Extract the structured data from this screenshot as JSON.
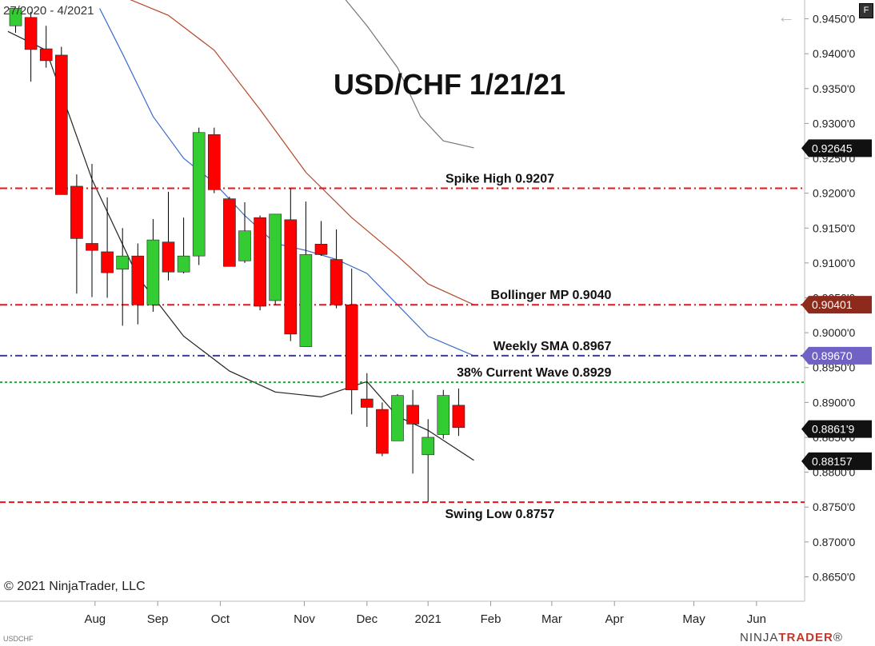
{
  "header": {
    "date_range": "27/2020 - 4/2021",
    "symbol": "USDCHF",
    "f_button": "F",
    "back_icon": "left-arrow-icon"
  },
  "footer": {
    "copyright": "© 2021 NinjaTrader, LLC",
    "logo_prefix": "NINJA",
    "logo_suffix": "TRADER",
    "logo_mark": "®"
  },
  "colors": {
    "bull": "#33cc33",
    "bear": "#ff0000",
    "wick": "#000000",
    "sma": "#222222",
    "bb_mid": "#b5482a",
    "bb_lower": "#3a6ccc",
    "bb_upper": "#777777",
    "red_line": "#e8141a",
    "blue_line": "#3b3b9e",
    "green_line": "#2e9e44",
    "tag_black": "#111111",
    "tag_brown": "#8e2a1b",
    "tag_purple": "#6f62c4"
  },
  "chart_data": {
    "type": "candlestick",
    "title": "USD/CHF 1/21/21",
    "ylim": [
      0.8615,
      0.9477
    ],
    "y_ticks": [
      "0.9450'0",
      "0.9400'0",
      "0.9350'0",
      "0.9300'0",
      "0.9250'0",
      "0.9200'0",
      "0.9150'0",
      "0.9100'0",
      "0.9050'0",
      "0.9000'0",
      "0.8950'0",
      "0.8900'0",
      "0.8850'0",
      "0.8800'0",
      "0.8750'0",
      "0.8700'0",
      "0.8650'0"
    ],
    "y_tick_values": [
      0.945,
      0.94,
      0.935,
      0.93,
      0.925,
      0.92,
      0.915,
      0.91,
      0.905,
      0.9,
      0.895,
      0.89,
      0.885,
      0.88,
      0.875,
      0.87,
      0.865
    ],
    "x_labels": [
      {
        "label": "Aug",
        "index": 5.2
      },
      {
        "label": "Sep",
        "index": 9.3
      },
      {
        "label": "Oct",
        "index": 13.4
      },
      {
        "label": "Nov",
        "index": 18.9
      },
      {
        "label": "Dec",
        "index": 23.0
      },
      {
        "label": "2021",
        "index": 27.0
      },
      {
        "label": "Feb",
        "index": 31.1
      },
      {
        "label": "Mar",
        "index": 35.1
      },
      {
        "label": "Apr",
        "index": 39.2
      },
      {
        "label": "May",
        "index": 44.4
      },
      {
        "label": "Jun",
        "index": 48.5
      }
    ],
    "candles": [
      {
        "o": 0.944,
        "h": 0.9458,
        "l": 0.943,
        "c": 0.9465
      },
      {
        "o": 0.9452,
        "h": 0.946,
        "l": 0.936,
        "c": 0.9406
      },
      {
        "o": 0.9407,
        "h": 0.944,
        "l": 0.938,
        "c": 0.939
      },
      {
        "o": 0.9398,
        "h": 0.941,
        "l": 0.9198,
        "c": 0.9198
      },
      {
        "o": 0.921,
        "h": 0.9227,
        "l": 0.9056,
        "c": 0.9135
      },
      {
        "o": 0.9128,
        "h": 0.9242,
        "l": 0.9051,
        "c": 0.9118
      },
      {
        "o": 0.9116,
        "h": 0.9194,
        "l": 0.905,
        "c": 0.9086
      },
      {
        "o": 0.9091,
        "h": 0.915,
        "l": 0.901,
        "c": 0.911
      },
      {
        "o": 0.911,
        "h": 0.9128,
        "l": 0.9012,
        "c": 0.904
      },
      {
        "o": 0.904,
        "h": 0.9163,
        "l": 0.903,
        "c": 0.9133
      },
      {
        "o": 0.913,
        "h": 0.9202,
        "l": 0.9075,
        "c": 0.9087
      },
      {
        "o": 0.9087,
        "h": 0.9165,
        "l": 0.9085,
        "c": 0.911
      },
      {
        "o": 0.911,
        "h": 0.9294,
        "l": 0.9097,
        "c": 0.9287
      },
      {
        "o": 0.9284,
        "h": 0.9294,
        "l": 0.92,
        "c": 0.9205
      },
      {
        "o": 0.9192,
        "h": 0.9195,
        "l": 0.9095,
        "c": 0.9095
      },
      {
        "o": 0.9103,
        "h": 0.9187,
        "l": 0.91,
        "c": 0.9146
      },
      {
        "o": 0.9165,
        "h": 0.9168,
        "l": 0.9032,
        "c": 0.9038
      },
      {
        "o": 0.9046,
        "h": 0.917,
        "l": 0.904,
        "c": 0.917
      },
      {
        "o": 0.9162,
        "h": 0.9207,
        "l": 0.8988,
        "c": 0.8998
      },
      {
        "o": 0.898,
        "h": 0.9188,
        "l": 0.898,
        "c": 0.9112
      },
      {
        "o": 0.9127,
        "h": 0.916,
        "l": 0.911,
        "c": 0.9112
      },
      {
        "o": 0.9105,
        "h": 0.9148,
        "l": 0.9035,
        "c": 0.904
      },
      {
        "o": 0.904,
        "h": 0.9092,
        "l": 0.8883,
        "c": 0.8918
      },
      {
        "o": 0.8905,
        "h": 0.8942,
        "l": 0.8865,
        "c": 0.8893
      },
      {
        "o": 0.889,
        "h": 0.89,
        "l": 0.8823,
        "c": 0.8827
      },
      {
        "o": 0.8845,
        "h": 0.8912,
        "l": 0.8845,
        "c": 0.891
      },
      {
        "o": 0.8896,
        "h": 0.8918,
        "l": 0.8798,
        "c": 0.8869
      },
      {
        "o": 0.8825,
        "h": 0.8876,
        "l": 0.8757,
        "c": 0.885
      },
      {
        "o": 0.8854,
        "h": 0.8918,
        "l": 0.8848,
        "c": 0.891
      },
      {
        "o": 0.8896,
        "h": 0.892,
        "l": 0.8852,
        "c": 0.8864
      }
    ],
    "indicators": {
      "sma": [
        [
          -0.5,
          0.9432
        ],
        [
          2,
          0.9405
        ],
        [
          5,
          0.922
        ],
        [
          8,
          0.908
        ],
        [
          11,
          0.8995
        ],
        [
          14,
          0.8945
        ],
        [
          17,
          0.8915
        ],
        [
          20,
          0.8908
        ],
        [
          23,
          0.893
        ],
        [
          25,
          0.888
        ],
        [
          27,
          0.886
        ],
        [
          30,
          0.8817
        ]
      ],
      "bollinger_mid": [
        [
          7,
          0.9482
        ],
        [
          10,
          0.9455
        ],
        [
          13,
          0.9405
        ],
        [
          16,
          0.932
        ],
        [
          19,
          0.923
        ],
        [
          22,
          0.9165
        ],
        [
          25,
          0.911
        ],
        [
          27,
          0.907
        ],
        [
          30,
          0.904
        ]
      ],
      "bollinger_lower": [
        [
          5.5,
          0.9465
        ],
        [
          7,
          0.94
        ],
        [
          9,
          0.931
        ],
        [
          11,
          0.925
        ],
        [
          13,
          0.9215
        ],
        [
          15,
          0.9168
        ],
        [
          17,
          0.9128
        ],
        [
          19,
          0.9118
        ],
        [
          21,
          0.9105
        ],
        [
          23,
          0.9085
        ],
        [
          25,
          0.904
        ],
        [
          27,
          0.8995
        ],
        [
          30,
          0.8967
        ]
      ],
      "bollinger_upper": [
        [
          21.5,
          0.948
        ],
        [
          23,
          0.944
        ],
        [
          25,
          0.938
        ],
        [
          26.5,
          0.931
        ],
        [
          28,
          0.9275
        ],
        [
          30,
          0.9265
        ]
      ]
    },
    "levels": [
      {
        "name": "Spike High",
        "value": 0.9207,
        "label": "Spike High 0.9207",
        "color": "red",
        "style": "dashdot",
        "align": "center",
        "label_index": 31.7
      },
      {
        "name": "Bollinger MP",
        "value": 0.904,
        "label": "Bollinger MP 0.9040",
        "color": "red",
        "style": "dashdot",
        "align": "right",
        "label_index": 39.0
      },
      {
        "name": "Weekly SMA",
        "value": 0.8967,
        "label": "Weekly SMA  0.8967",
        "color": "blue",
        "style": "dashdot",
        "align": "right",
        "label_index": 39.0
      },
      {
        "name": "38% Current Wave",
        "value": 0.8929,
        "label": "38% Current Wave 0.8929",
        "color": "green",
        "style": "dotted",
        "align": "right",
        "label_index": 39.0
      },
      {
        "name": "Swing Low",
        "value": 0.8757,
        "label": "Swing Low 0.8757",
        "color": "red",
        "style": "dashed",
        "align": "center",
        "label_index": 31.7
      }
    ],
    "price_tags": [
      {
        "text": "0.92645",
        "value": 0.92645,
        "style": "black"
      },
      {
        "text": "0.90401",
        "value": 0.90401,
        "style": "brown"
      },
      {
        "text": "0.89670",
        "value": 0.8967,
        "style": "purple"
      },
      {
        "text": "0.8861'9",
        "value": 0.88619,
        "style": "black"
      },
      {
        "text": "0.88157",
        "value": 0.88157,
        "style": "black"
      }
    ]
  }
}
